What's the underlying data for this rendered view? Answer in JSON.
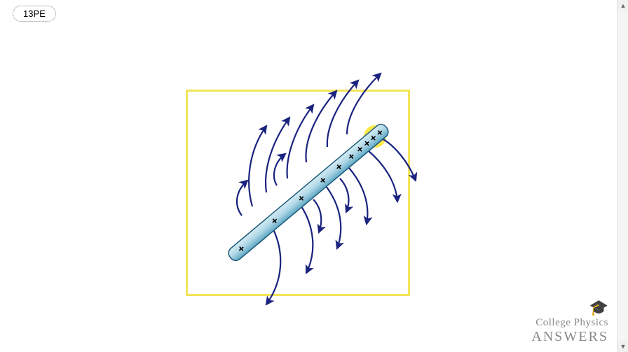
{
  "tag": {
    "label": "13PE"
  },
  "logo": {
    "line1": "College Physics",
    "line2": "ANSWERS",
    "icon": "🎓"
  },
  "diagram": {
    "type": "physics-field-diagram",
    "box_border_color": "#f2e45a",
    "highlight_color": "#f9e94b",
    "rod": {
      "angle_deg": -40,
      "fill_light": "#d6ecf3",
      "fill_dark": "#5da7c4",
      "stroke": "#1c5a78",
      "charges_symbol": "+",
      "charge_count": 10
    },
    "field_line_color": "#1a237e",
    "field_line_count": 12
  },
  "scrollbar": {
    "up": "▲",
    "down": "▼"
  }
}
